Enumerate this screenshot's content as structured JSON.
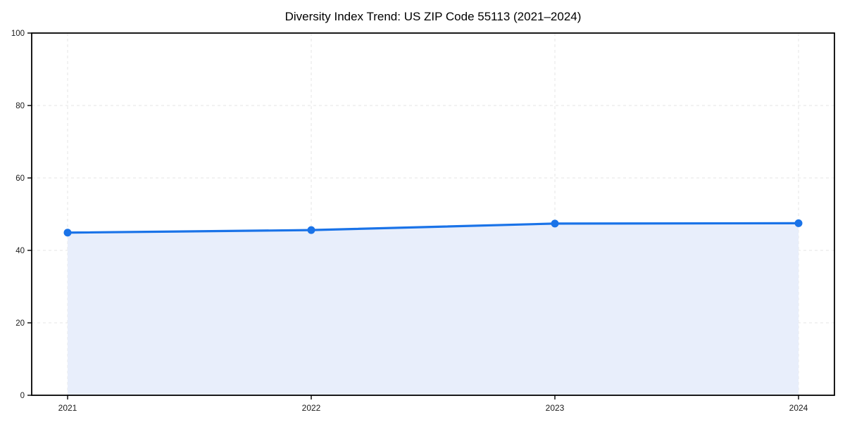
{
  "chart_data": {
    "type": "area",
    "title": "Diversity Index Trend: US ZIP Code 55113 (2021–2024)",
    "categories": [
      "2021",
      "2022",
      "2023",
      "2024"
    ],
    "series": [
      {
        "name": "Diversity Index",
        "values": [
          44.9,
          45.6,
          47.4,
          47.5
        ]
      }
    ],
    "xlabel": "",
    "ylabel": "",
    "ylim": [
      0,
      100
    ],
    "yticks": [
      0,
      20,
      40,
      60,
      80,
      100
    ],
    "grid": {
      "style": "dashed",
      "horizontal": true,
      "vertical": true,
      "color": "#e4e4e4"
    },
    "legend": "none",
    "colors": {
      "line": "#1a73e8",
      "marker": "#1a73e8",
      "fill": "#e8eefb",
      "background": "#ffffff",
      "spine": "#000000",
      "tick_label": "#1a1a1a"
    }
  }
}
